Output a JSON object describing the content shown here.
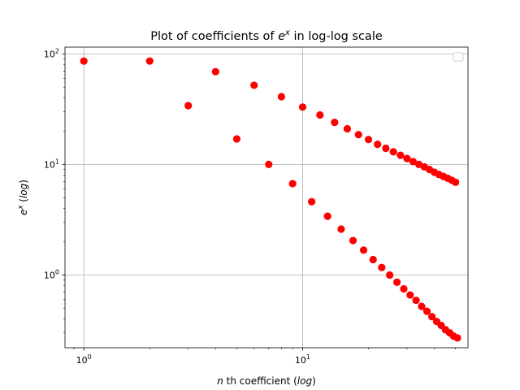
{
  "chart_data": {
    "type": "scatter",
    "title": "Plot of coefficients of e^x in log-log scale",
    "title_parts": {
      "prefix": "Plot of coefficients of ",
      "base": "e",
      "sup": "x",
      "suffix": " in log-log scale"
    },
    "xlabel": "n th coefficient (log)",
    "xlabel_parts": {
      "n": "n",
      "mid": " th coefficient (",
      "log": "log",
      "end": ")"
    },
    "ylabel": "e^x (log)",
    "ylabel_parts": {
      "base": "e",
      "sup": "x",
      "mid": " (",
      "log": "log",
      "end": ")"
    },
    "x_scale": "log",
    "y_scale": "log",
    "xlim": [
      0.82,
      57
    ],
    "ylim": [
      0.22,
      115
    ],
    "xticks": [
      {
        "value": 1,
        "base": "10",
        "exp": "0"
      },
      {
        "value": 10,
        "base": "10",
        "exp": "1"
      }
    ],
    "yticks": [
      {
        "value": 1,
        "base": "10",
        "exp": "0"
      },
      {
        "value": 10,
        "base": "10",
        "exp": "1"
      },
      {
        "value": 100,
        "base": "10",
        "exp": "2"
      }
    ],
    "grid": true,
    "legend": "top-right",
    "marker_color": "#ff0000",
    "series": [
      {
        "x": [
          1,
          2,
          4,
          6,
          8,
          10,
          12,
          14,
          16,
          18,
          20,
          22,
          24,
          26,
          28,
          30,
          32,
          34,
          36,
          38,
          40,
          42,
          44,
          46,
          48,
          50
        ],
        "y": [
          86,
          86,
          69,
          52,
          41,
          33,
          28,
          24,
          21,
          18.6,
          16.8,
          15.2,
          14,
          13,
          12.1,
          11.3,
          10.6,
          10,
          9.5,
          9,
          8.5,
          8.1,
          7.8,
          7.5,
          7.2,
          6.9
        ]
      },
      {
        "x": [
          3,
          5,
          7,
          9,
          11,
          13,
          15,
          17,
          19,
          21,
          23,
          25,
          27,
          29,
          31,
          33,
          35,
          37,
          39,
          41,
          43,
          45,
          47,
          49,
          51
        ],
        "y": [
          34,
          17,
          10,
          6.7,
          4.6,
          3.4,
          2.6,
          2.05,
          1.68,
          1.38,
          1.17,
          1.0,
          0.86,
          0.75,
          0.66,
          0.59,
          0.52,
          0.47,
          0.42,
          0.38,
          0.35,
          0.32,
          0.3,
          0.28,
          0.27
        ]
      }
    ]
  }
}
